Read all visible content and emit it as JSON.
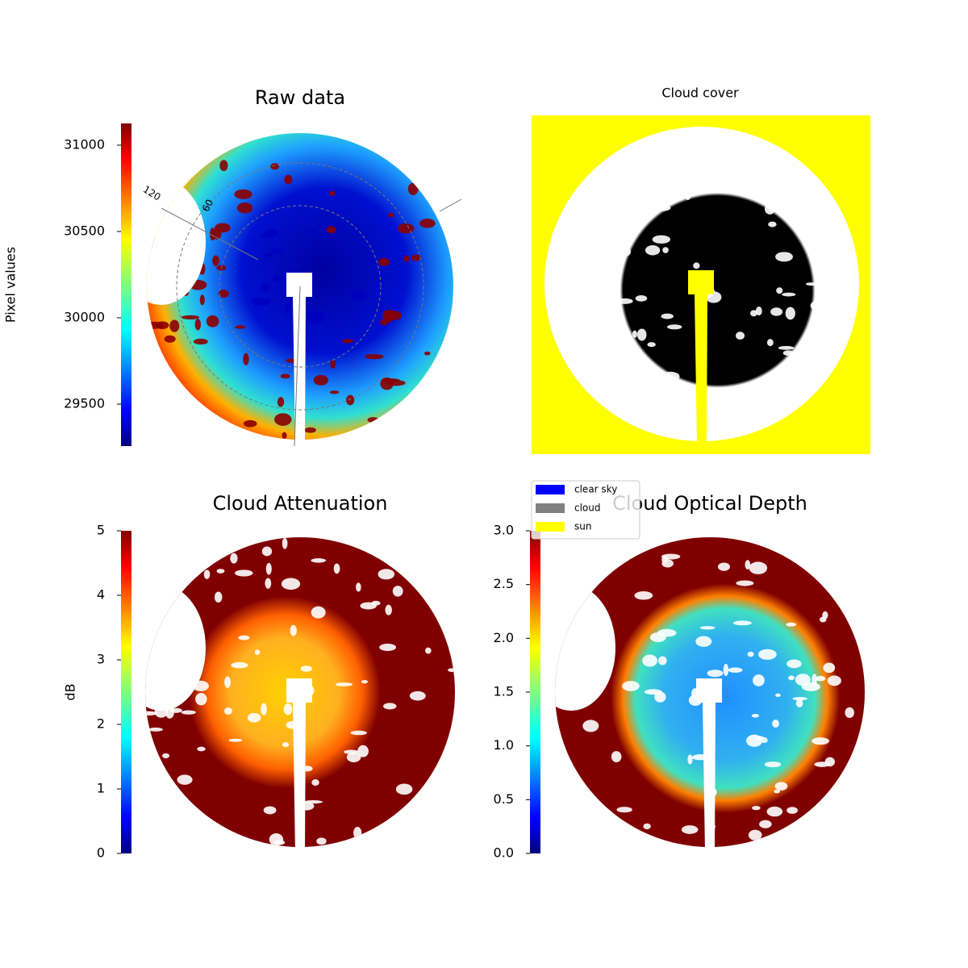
{
  "chart_data": [
    {
      "type": "image",
      "title": "Raw data",
      "ylabel": "Pixel values",
      "ylim": [
        29257,
        31126
      ],
      "yticks": [
        29500,
        30000,
        30500,
        31000
      ],
      "annotations": [
        "120",
        "60"
      ]
    },
    {
      "type": "image",
      "title": "Cloud cover",
      "legend": [
        {
          "name": "clear sky",
          "color": "#0000ff"
        },
        {
          "name": "cloud",
          "color": "#808080"
        },
        {
          "name": "sun",
          "color": "#ffff00"
        }
      ]
    },
    {
      "type": "image",
      "title": "Cloud Attenuation",
      "ylabel": "dB",
      "ylim": [
        0,
        5
      ],
      "yticks": [
        0,
        1,
        2,
        3,
        4,
        5
      ]
    },
    {
      "type": "image",
      "title": "Cloud Optical Depth",
      "ylim": [
        0,
        3
      ],
      "yticks": [
        {
          "value": 0,
          "label": "0.0"
        },
        {
          "value": 0.5,
          "label": "0.5"
        },
        {
          "value": 1,
          "label": "1.0"
        },
        {
          "value": 1.5,
          "label": "1.5"
        },
        {
          "value": 2,
          "label": "2.0"
        },
        {
          "value": 2.5,
          "label": "2.5"
        },
        {
          "value": 3,
          "label": "3.0"
        }
      ]
    }
  ]
}
